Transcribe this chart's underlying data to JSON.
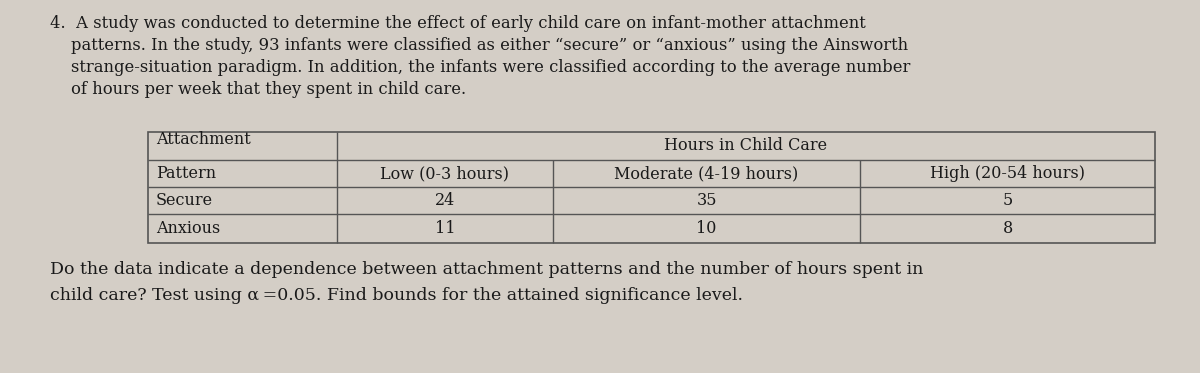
{
  "background_color": "#d4cec6",
  "fig_width": 12.0,
  "fig_height": 3.73,
  "paragraph_text_line1": "4.  A study was conducted to determine the effect of early child care on infant-mother attachment",
  "paragraph_text_line2": "    patterns. In the study, 93 infants were classified as either “secure” or “anxious” using the Ainsworth",
  "paragraph_text_line3": "    strange-situation paradigm. In addition, the infants were classified according to the average number",
  "paragraph_text_line4": "    of hours per week that they spent in child care.",
  "question_line1": "Do the data indicate a dependence between attachment patterns and the number of hours spent in",
  "question_line2": "child care? Test using α =0.05. Find bounds for the attained significance level.",
  "font_size_para": 11.8,
  "font_size_table": 11.5,
  "font_size_question": 12.5,
  "text_color": "#1a1a1a",
  "table_edge_color": "#555555",
  "table": {
    "row0_col0_top": "Attachment",
    "row0_col0_bot": "Pattern",
    "row0_header": "Hours in Child Care",
    "col1_label": "Low (0-3 hours)",
    "col2_label": "Moderate (4-19 hours)",
    "col3_label": "High (20-54 hours)",
    "secure_vals": [
      "24",
      "35",
      "5"
    ],
    "anxious_vals": [
      "11",
      "10",
      "8"
    ]
  }
}
